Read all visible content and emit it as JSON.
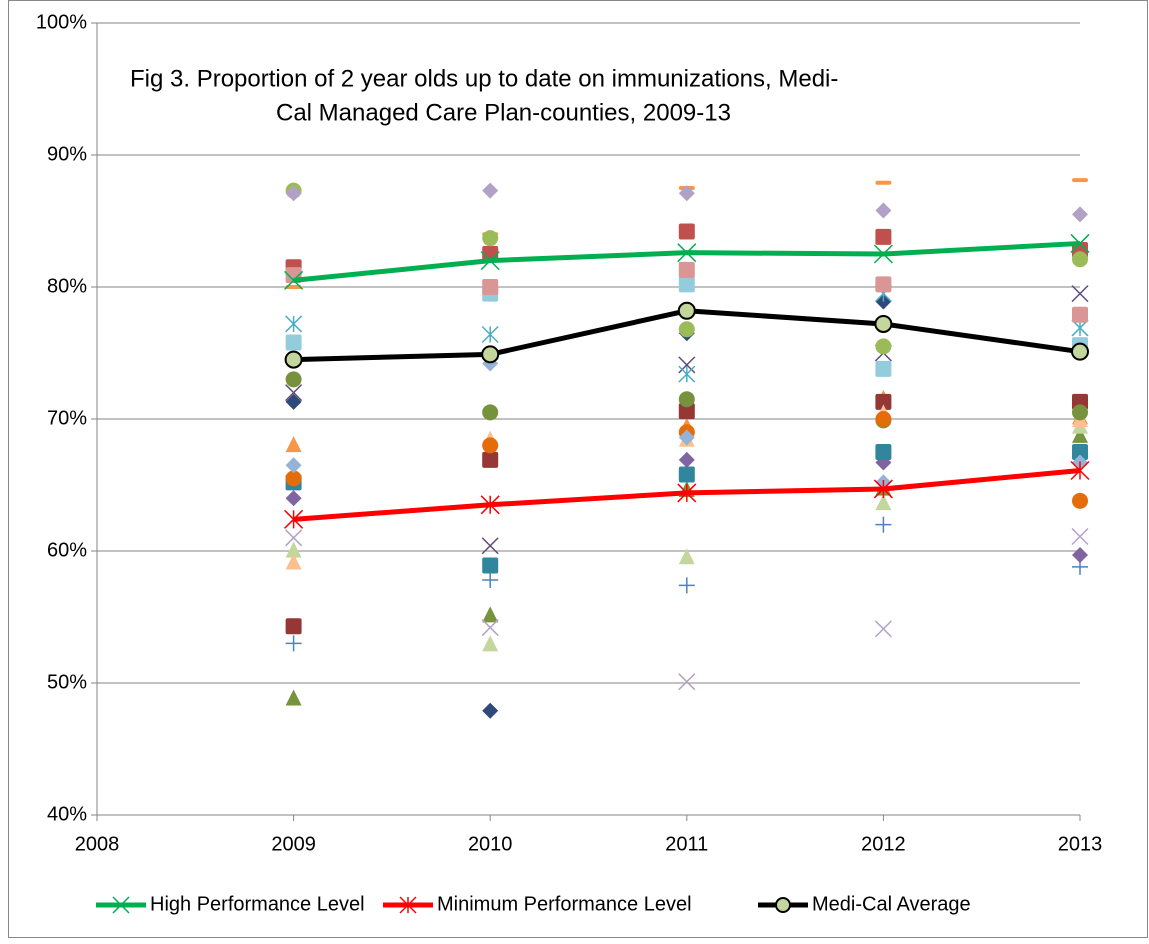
{
  "chart_data": {
    "type": "scatter",
    "title": [
      "Fig 3.  Proportion of 2 year olds up to date on immunizations, Medi-",
      "Cal Managed Care Plan-counties, 2009-13"
    ],
    "xlim": [
      2008,
      2013
    ],
    "xticks": [
      2008,
      2009,
      2010,
      2011,
      2012,
      2013
    ],
    "ylim": [
      40,
      100
    ],
    "yticks": [
      {
        "value": 40,
        "label": "40%"
      },
      {
        "value": 50,
        "label": "50%"
      },
      {
        "value": 60,
        "label": "60%"
      },
      {
        "value": 70,
        "label": "70%"
      },
      {
        "value": 80,
        "label": "80%"
      },
      {
        "value": 90,
        "label": "90%"
      },
      {
        "value": 100,
        "label": "100%"
      }
    ],
    "grid": true,
    "legend": "bottom",
    "series": [
      {
        "marker": "diamond",
        "color": "#2e4a7a",
        "x": [
          2009,
          2010,
          2011,
          2012,
          2013
        ],
        "values": [
          71.3,
          47.9,
          76.5,
          78.9,
          71.0
        ]
      },
      {
        "marker": "square",
        "color": "#c0504d",
        "x": [
          2009,
          2010,
          2011,
          2012,
          2013
        ],
        "values": [
          81.5,
          82.5,
          84.2,
          83.8,
          82.8
        ]
      },
      {
        "marker": "triangle",
        "color": "#77933c",
        "x": [
          2009,
          2010,
          2011,
          2012,
          2013
        ],
        "values": [
          48.9,
          55.2,
          64.7,
          64.8,
          68.8
        ]
      },
      {
        "marker": "x",
        "color": "#604a7b",
        "x": [
          2009,
          2010,
          2011,
          2012,
          2013
        ],
        "values": [
          72.0,
          60.4,
          74.1,
          75.0,
          79.5
        ]
      },
      {
        "marker": "star",
        "color": "#4bacc6",
        "x": [
          2009,
          2010,
          2011,
          2012,
          2013
        ],
        "values": [
          77.2,
          76.4,
          73.4,
          79.5,
          76.9
        ]
      },
      {
        "marker": "dash",
        "color": "#f79646",
        "x": [
          2009,
          2010,
          2011,
          2012,
          2013
        ],
        "values": [
          80.0,
          84.0,
          87.5,
          87.9,
          88.1
        ]
      },
      {
        "marker": "plus",
        "color": "#4f81bd",
        "x": [
          2009,
          2010,
          2011,
          2012,
          2013
        ],
        "values": [
          53.0,
          57.8,
          57.4,
          62.0,
          58.8
        ]
      },
      {
        "marker": "diamond",
        "color": "#8064a2",
        "x": [
          2009,
          2010,
          2011,
          2012,
          2013
        ],
        "values": [
          64.0,
          67.3,
          66.9,
          66.7,
          59.7
        ]
      },
      {
        "marker": "square",
        "color": "#31859c",
        "x": [
          2009,
          2010,
          2011,
          2012,
          2013
        ],
        "values": [
          65.2,
          58.9,
          65.8,
          67.5,
          67.5
        ]
      },
      {
        "marker": "triangle",
        "color": "#f79646",
        "x": [
          2009,
          2010,
          2011,
          2012,
          2013
        ],
        "values": [
          68.1,
          67.6,
          69.5,
          71.6,
          70.2
        ]
      },
      {
        "marker": "square",
        "color": "#953735",
        "x": [
          2009,
          2010,
          2011,
          2012,
          2013
        ],
        "values": [
          54.3,
          66.9,
          70.6,
          71.3,
          71.3
        ]
      },
      {
        "marker": "circle",
        "color": "#9bbb59",
        "x": [
          2009,
          2010,
          2011,
          2012,
          2013
        ],
        "values": [
          87.3,
          83.7,
          76.8,
          75.5,
          82.1
        ]
      },
      {
        "marker": "x",
        "color": "#b3a2c7",
        "x": [
          2009,
          2010,
          2011,
          2012,
          2013
        ],
        "values": [
          61.0,
          54.2,
          50.1,
          54.1,
          61.1
        ]
      },
      {
        "marker": "diamond",
        "color": "#b2a1c7",
        "x": [
          2009,
          2010,
          2011,
          2012,
          2013
        ],
        "values": [
          87.1,
          87.3,
          87.1,
          85.8,
          85.5
        ]
      },
      {
        "marker": "square",
        "color": "#93cddd",
        "x": [
          2009,
          2010,
          2011,
          2012,
          2013
        ],
        "values": [
          75.8,
          79.5,
          80.2,
          73.8,
          75.6
        ]
      },
      {
        "marker": "square",
        "color": "#d99694",
        "x": [
          2009,
          2010,
          2011,
          2012,
          2013
        ],
        "values": [
          80.9,
          80.0,
          81.3,
          80.2,
          77.9
        ]
      },
      {
        "marker": "triangle",
        "color": "#c3d69b",
        "x": [
          2009,
          2010,
          2011,
          2012,
          2013
        ],
        "values": [
          60.1,
          53.0,
          59.6,
          63.7,
          69.5
        ]
      },
      {
        "marker": "triangle",
        "color": "#fac090",
        "x": [
          2009,
          2010,
          2011,
          2012,
          2013
        ],
        "values": [
          59.2,
          68.5,
          68.5,
          70.5,
          70.0
        ]
      },
      {
        "marker": "circle",
        "color": "#76923c",
        "x": [
          2009,
          2010,
          2011,
          2012,
          2013
        ],
        "values": [
          73.0,
          70.5,
          71.5,
          69.9,
          70.5
        ]
      },
      {
        "marker": "circle",
        "color": "#e46c0a",
        "x": [
          2009,
          2010,
          2011,
          2012,
          2013
        ],
        "values": [
          65.5,
          68.0,
          69.0,
          70.0,
          63.8
        ]
      },
      {
        "marker": "diamond",
        "color": "#95b3d7",
        "x": [
          2009,
          2010,
          2011,
          2012,
          2013
        ],
        "values": [
          66.5,
          74.2,
          68.6,
          65.2,
          66.7
        ]
      },
      {
        "name": "High Performance Level",
        "line": true,
        "marker": "x",
        "color": "#00b050",
        "x": [
          2009,
          2010,
          2011,
          2012,
          2013
        ],
        "values": [
          80.5,
          82.0,
          82.6,
          82.5,
          83.3
        ]
      },
      {
        "name": "Minimum Performance Level",
        "line": true,
        "marker": "star",
        "color": "#ff0000",
        "x": [
          2009,
          2010,
          2011,
          2012,
          2013
        ],
        "values": [
          62.4,
          63.5,
          64.4,
          64.7,
          66.1
        ]
      },
      {
        "name": "Medi-Cal Average",
        "line": true,
        "marker": "ringdot",
        "color": "#000000",
        "x": [
          2009,
          2010,
          2011,
          2012,
          2013
        ],
        "values": [
          74.5,
          74.9,
          78.2,
          77.2,
          75.1
        ]
      }
    ]
  }
}
